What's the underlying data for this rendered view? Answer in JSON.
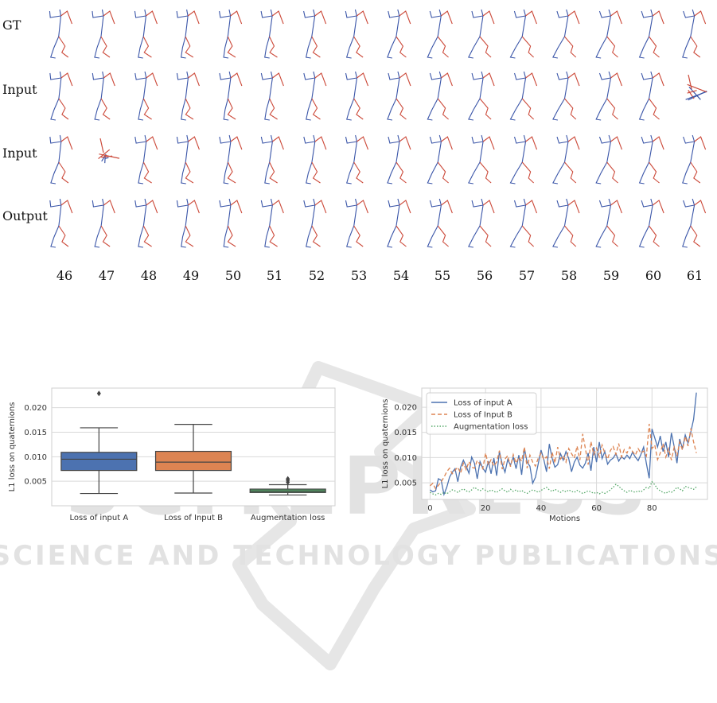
{
  "figure": {
    "row_labels": [
      "GT",
      "Input",
      "Input",
      "Output"
    ],
    "frame_numbers": [
      "46",
      "47",
      "48",
      "49",
      "50",
      "51",
      "52",
      "53",
      "54",
      "55",
      "56",
      "57",
      "58",
      "59",
      "60",
      "61"
    ],
    "colors": {
      "left_limb": "#cc4a3a",
      "right_limb": "#3a55a8",
      "spine": "#3a55a8"
    }
  },
  "watermark": {
    "line1": "SCITEPRESS",
    "line2": "SCIENCE AND TECHNOLOGY PUBLICATIONS"
  },
  "chart_data": [
    {
      "type": "box",
      "title": "",
      "xlabel": "",
      "ylabel": "L1 loss on quaternions",
      "categories": [
        "Loss of input A",
        "Loss of Input B",
        "Augmentation loss"
      ],
      "ylim": [
        0.0,
        0.024
      ],
      "yticks": [
        "0.005",
        "0.010",
        "0.015",
        "0.020"
      ],
      "boxes": [
        {
          "name": "Loss of input A",
          "whisker_low": 0.0025,
          "q1": 0.0072,
          "median": 0.0095,
          "q3": 0.0109,
          "whisker_high": 0.0159,
          "outliers": [
            0.0229
          ],
          "color": "#4c72b0"
        },
        {
          "name": "Loss of Input B",
          "whisker_low": 0.0026,
          "q1": 0.0072,
          "median": 0.0089,
          "q3": 0.0111,
          "whisker_high": 0.0166,
          "outliers": [],
          "color": "#dd8452"
        },
        {
          "name": "Augmentation loss",
          "whisker_low": 0.0022,
          "q1": 0.0027,
          "median": 0.003,
          "q3": 0.0034,
          "whisker_high": 0.0043,
          "outliers": [
            0.0048,
            0.0052,
            0.0055
          ],
          "color": "#55a868"
        }
      ],
      "grid": true
    },
    {
      "type": "line",
      "title": "",
      "xlabel": "Motions",
      "ylabel": "L1 loss on quaternions",
      "xlim": [
        -3,
        100
      ],
      "ylim": [
        0.0017,
        0.0238
      ],
      "xticks": [
        "0",
        "20",
        "40",
        "60",
        "80"
      ],
      "yticks": [
        "0.005",
        "0.010",
        "0.015",
        "0.020"
      ],
      "legend_position": "top-left",
      "grid": true,
      "series": [
        {
          "name": "Loss of input A",
          "color": "#4c72b0",
          "style": "solid",
          "values": [
            0.0036,
            0.0032,
            0.0034,
            0.0058,
            0.0055,
            0.0027,
            0.0041,
            0.0061,
            0.0071,
            0.0078,
            0.0052,
            0.0081,
            0.0095,
            0.0083,
            0.0069,
            0.0101,
            0.0089,
            0.0058,
            0.0092,
            0.0079,
            0.0071,
            0.0093,
            0.0068,
            0.0099,
            0.0064,
            0.0112,
            0.0087,
            0.0071,
            0.0096,
            0.0085,
            0.0101,
            0.0078,
            0.0105,
            0.0066,
            0.0118,
            0.0091,
            0.0083,
            0.0049,
            0.0061,
            0.0088,
            0.0115,
            0.0096,
            0.0072,
            0.0127,
            0.0099,
            0.0081,
            0.0086,
            0.0108,
            0.0095,
            0.0112,
            0.0098,
            0.0072,
            0.0091,
            0.0101,
            0.0085,
            0.0079,
            0.0089,
            0.0109,
            0.0074,
            0.0121,
            0.0091,
            0.0131,
            0.0098,
            0.0112,
            0.0087,
            0.0095,
            0.0099,
            0.0108,
            0.0093,
            0.0102,
            0.0097,
            0.0105,
            0.0098,
            0.0111,
            0.0101,
            0.0094,
            0.0106,
            0.0121,
            0.0088,
            0.0059,
            0.0157,
            0.0139,
            0.0121,
            0.0143,
            0.0112,
            0.0131,
            0.0101,
            0.0149,
            0.0122,
            0.0089,
            0.0137,
            0.0118,
            0.0145,
            0.0129,
            0.0151,
            0.0176,
            0.0229
          ]
        },
        {
          "name": "Loss of Input B",
          "color": "#dd8452",
          "style": "dashed",
          "values": [
            0.0044,
            0.0049,
            0.0038,
            0.0045,
            0.0052,
            0.0061,
            0.0072,
            0.0079,
            0.0068,
            0.0075,
            0.0081,
            0.0069,
            0.0089,
            0.0076,
            0.0092,
            0.0081,
            0.0079,
            0.0094,
            0.0087,
            0.0078,
            0.0109,
            0.0085,
            0.0096,
            0.0083,
            0.0091,
            0.0114,
            0.0077,
            0.0097,
            0.0104,
            0.0082,
            0.0106,
            0.0089,
            0.0101,
            0.0093,
            0.0121,
            0.0079,
            0.0105,
            0.0091,
            0.0083,
            0.0099,
            0.0109,
            0.0096,
            0.0102,
            0.0078,
            0.0111,
            0.0089,
            0.0121,
            0.0097,
            0.0104,
            0.0091,
            0.0118,
            0.0108,
            0.0099,
            0.0123,
            0.0095,
            0.0147,
            0.0118,
            0.0086,
            0.0132,
            0.0106,
            0.0119,
            0.0102,
            0.0125,
            0.0109,
            0.0097,
            0.0114,
            0.0122,
            0.0106,
            0.0128,
            0.0101,
            0.0116,
            0.0109,
            0.0121,
            0.0112,
            0.0105,
            0.0118,
            0.0109,
            0.0113,
            0.0103,
            0.0167,
            0.0118,
            0.0125,
            0.0096,
            0.0109,
            0.0128,
            0.0101,
            0.0118,
            0.0095,
            0.0121,
            0.0103,
            0.0131,
            0.0115,
            0.0142,
            0.0123,
            0.0158,
            0.0131,
            0.0109
          ]
        },
        {
          "name": "Augmentation loss",
          "color": "#55a868",
          "style": "dotted",
          "values": [
            0.0031,
            0.0028,
            0.0026,
            0.0029,
            0.0027,
            0.0031,
            0.0028,
            0.0032,
            0.0036,
            0.0034,
            0.0031,
            0.0035,
            0.0038,
            0.0034,
            0.0032,
            0.0036,
            0.0041,
            0.0037,
            0.0034,
            0.0038,
            0.0035,
            0.0032,
            0.0036,
            0.0033,
            0.0031,
            0.0035,
            0.0038,
            0.0034,
            0.0031,
            0.0037,
            0.0033,
            0.0036,
            0.0032,
            0.0035,
            0.0031,
            0.0029,
            0.0033,
            0.0036,
            0.0034,
            0.0031,
            0.0035,
            0.0038,
            0.0041,
            0.0036,
            0.0033,
            0.0037,
            0.0034,
            0.0031,
            0.0035,
            0.0032,
            0.0036,
            0.0033,
            0.0031,
            0.0035,
            0.0032,
            0.0029,
            0.0031,
            0.0034,
            0.0032,
            0.0029,
            0.0031,
            0.0028,
            0.0031,
            0.0029,
            0.0032,
            0.0036,
            0.0041,
            0.0047,
            0.0043,
            0.0038,
            0.0034,
            0.0031,
            0.0035,
            0.0033,
            0.0031,
            0.0034,
            0.0032,
            0.0036,
            0.0041,
            0.0039,
            0.0052,
            0.0046,
            0.0038,
            0.0034,
            0.0031,
            0.0029,
            0.0033,
            0.0031,
            0.0035,
            0.0041,
            0.0038,
            0.0034,
            0.0043,
            0.0041,
            0.0039,
            0.0037,
            0.0042
          ]
        }
      ]
    }
  ]
}
